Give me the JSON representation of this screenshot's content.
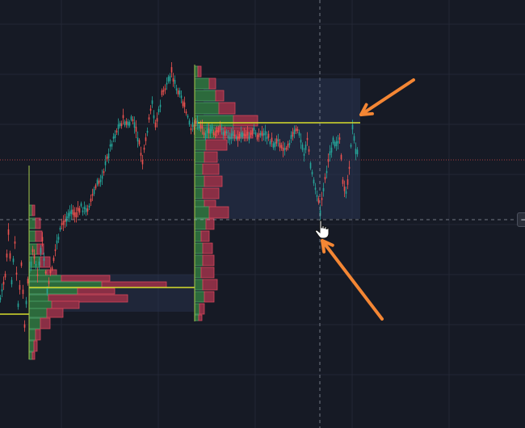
{
  "chart_data": {
    "type": "candlestick",
    "grid": true,
    "colors": {
      "background": "#161a25",
      "grid": "#232735",
      "up": "#26a69a",
      "down": "#ef5350",
      "profile_up_fill": "#2c6a3c",
      "profile_down_fill": "#8a2f45",
      "profile_up_border": "#4ea66a",
      "profile_down_border": "#d5475a",
      "poc_line": "#d7dd2c",
      "range_box": "#2a3552",
      "annotation_arrow": "#f48634",
      "crosshair": "#9aa0ad",
      "last_price_line": "#d04747"
    },
    "annotations": [
      {
        "type": "arrow",
        "points_to": "poc-line-high-range"
      },
      {
        "type": "arrow",
        "points_to": "swing-low"
      }
    ]
  },
  "cursor": {
    "icon": "hand-pointer-icon"
  },
  "controls": {
    "zoom_icon": "minus-circle-icon",
    "zoom_glyph": "−"
  }
}
